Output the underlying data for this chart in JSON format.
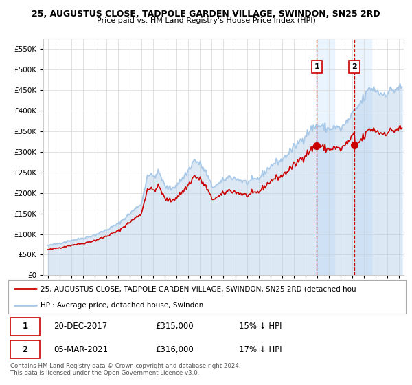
{
  "title": "25, AUGUSTUS CLOSE, TADPOLE GARDEN VILLAGE, SWINDON, SN25 2RD",
  "subtitle": "Price paid vs. HM Land Registry's House Price Index (HPI)",
  "hpi_color": "#a8c8e8",
  "price_paid_color": "#cc0000",
  "vline_color": "#cc0000",
  "highlight_color": "#ddeeff",
  "bg_color": "#ffffff",
  "grid_color": "#dddddd",
  "sale1_date": 2017.97,
  "sale1_value": 315000,
  "sale2_date": 2021.17,
  "sale2_value": 316000,
  "ylim": [
    0,
    575000
  ],
  "xlim": [
    1994.6,
    2025.4
  ],
  "ytick_labels": [
    "£0",
    "£50K",
    "£100K",
    "£150K",
    "£200K",
    "£250K",
    "£300K",
    "£350K",
    "£400K",
    "£450K",
    "£500K",
    "£550K"
  ],
  "ytick_vals": [
    0,
    50000,
    100000,
    150000,
    200000,
    250000,
    300000,
    350000,
    400000,
    450000,
    500000,
    550000
  ],
  "legend_line1": "25, AUGUSTUS CLOSE, TADPOLE GARDEN VILLAGE, SWINDON, SN25 2RD (detached hou",
  "legend_line2": "HPI: Average price, detached house, Swindon",
  "table_row1": [
    "1",
    "20-DEC-2017",
    "£315,000",
    "15% ↓ HPI"
  ],
  "table_row2": [
    "2",
    "05-MAR-2021",
    "£316,000",
    "17% ↓ HPI"
  ],
  "footer": "Contains HM Land Registry data © Crown copyright and database right 2024.\nThis data is licensed under the Open Government Licence v3.0."
}
